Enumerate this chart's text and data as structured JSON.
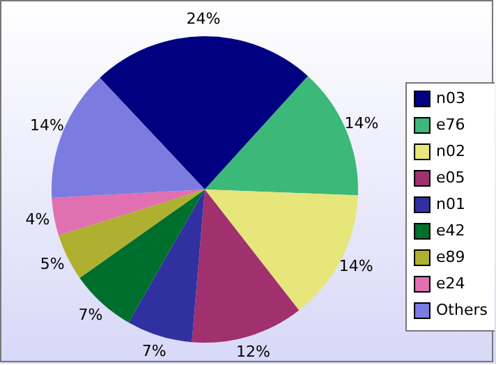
{
  "chart_data": {
    "type": "pie",
    "categories": [
      "n03",
      "e76",
      "n02",
      "e05",
      "n01",
      "e42",
      "e89",
      "e24",
      "Others"
    ],
    "values": [
      24,
      14,
      14,
      12,
      7,
      7,
      5,
      4,
      14
    ],
    "value_labels": [
      "24%",
      "14%",
      "14%",
      "12%",
      "7%",
      "7%",
      "5%",
      "4%",
      "14%"
    ],
    "colors": [
      "#000080",
      "#3cb878",
      "#e6e67a",
      "#a0306e",
      "#3030a0",
      "#006f2e",
      "#b0b030",
      "#e070b0",
      "#7b7be0"
    ],
    "legend": "right"
  }
}
